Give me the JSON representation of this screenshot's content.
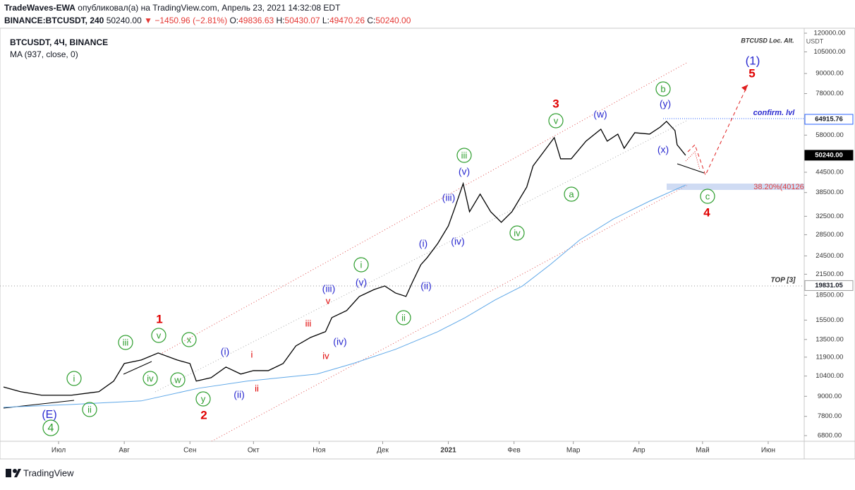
{
  "header": {
    "line1": "TradeWaves-EWA",
    "line1_rest": "опубликовал(а) на TradingView.com, Апрель 23, 2021 14:32:08 EDT",
    "symbol": "BINANCE:BTCUSDT, 240",
    "last": "50240.00",
    "arrow": "▼",
    "change": "−1450.96 (−2.81%)",
    "o_label": "O:",
    "o": "49836.63",
    "h_label": "H:",
    "h": "50430.07",
    "l_label": "L:",
    "l": "49470.26",
    "c_label": "C:",
    "c": "50240.00"
  },
  "footer": {
    "brand": "TradingView"
  },
  "chart_data": {
    "type": "line",
    "log_scale": true,
    "y_unit": "USDT",
    "xlim": [
      156,
      534
    ],
    "ylim": [
      6530,
      124300
    ],
    "xticks": [
      {
        "value": 182,
        "label": "Июл"
      },
      {
        "value": 213,
        "label": "Авг"
      },
      {
        "value": 244,
        "label": "Сен"
      },
      {
        "value": 274,
        "label": "Окт"
      },
      {
        "value": 305,
        "label": "Ноя"
      },
      {
        "value": 335,
        "label": "Дек"
      },
      {
        "value": 366,
        "label": "2021"
      },
      {
        "value": 397,
        "label": "Фев"
      },
      {
        "value": 425,
        "label": "Мар"
      },
      {
        "value": 456,
        "label": "Апр"
      },
      {
        "value": 486,
        "label": "Май"
      },
      {
        "value": 517,
        "label": "Июн"
      }
    ],
    "yticks": [
      {
        "value": 120000,
        "label": "120000.00"
      },
      {
        "value": 105000,
        "label": "105000.00"
      },
      {
        "value": 90000,
        "label": "90000.00"
      },
      {
        "value": 78000,
        "label": "78000.00"
      },
      {
        "value": 58000,
        "label": "58000.00"
      },
      {
        "value": 44500,
        "label": "44500.00"
      },
      {
        "value": 38500,
        "label": "38500.00"
      },
      {
        "value": 32500,
        "label": "32500.00"
      },
      {
        "value": 28500,
        "label": "28500.00"
      },
      {
        "value": 24500,
        "label": "24500.00"
      },
      {
        "value": 21500,
        "label": "21500.00"
      },
      {
        "value": 18500,
        "label": "18500.00"
      },
      {
        "value": 15500,
        "label": "15500.00"
      },
      {
        "value": 13500,
        "label": "13500.00"
      },
      {
        "value": 11900,
        "label": "11900.00"
      },
      {
        "value": 10400,
        "label": "10400.00"
      },
      {
        "value": 9000,
        "label": "9000.00"
      },
      {
        "value": 7800,
        "label": "7800.00"
      },
      {
        "value": 6800,
        "label": "6800.00"
      }
    ],
    "price_labels": [
      {
        "value": 64915.76,
        "label": "64915.76",
        "color": "#2962ff"
      },
      {
        "value": 50240,
        "label": "50240.00",
        "color": "#000000"
      },
      {
        "value": 19831.05,
        "label": "19831.05",
        "color": "#9e9e9e"
      }
    ],
    "series": [
      {
        "name": "BTCUSDT, 4Ч, BINANCE",
        "color": "#000000",
        "x": [
          156,
          164,
          174,
          188,
          201,
          208,
          213,
          221,
          229,
          238,
          244,
          247,
          254,
          261,
          268,
          274,
          281,
          288,
          294,
          301,
          308,
          311,
          318,
          324,
          331,
          336,
          341,
          346,
          349,
          353,
          356,
          361,
          366,
          369,
          373,
          376,
          381,
          386,
          391,
          396,
          403,
          406,
          411,
          416,
          419,
          424,
          431,
          438,
          441,
          446,
          449,
          454,
          461,
          466,
          469,
          473,
          474,
          478
        ],
        "values": [
          9620,
          9300,
          9070,
          9070,
          9300,
          10030,
          11370,
          11660,
          12260,
          11660,
          11370,
          10030,
          10280,
          11090,
          10550,
          10810,
          10810,
          11370,
          12890,
          13700,
          14270,
          15780,
          16590,
          18350,
          19280,
          19770,
          18810,
          18350,
          20290,
          23000,
          24200,
          26770,
          30340,
          34420,
          41040,
          33570,
          38070,
          33570,
          31140,
          33570,
          40030,
          46560,
          51490,
          56970,
          48970,
          48970,
          55560,
          60490,
          55560,
          58410,
          52800,
          58990,
          58410,
          61410,
          63960,
          59890,
          54150,
          50220
        ]
      },
      {
        "name": "MA (937, close, 0)",
        "color": "#5fa8e8",
        "x": [
          156,
          188,
          221,
          248,
          271,
          304,
          321,
          341,
          361,
          374,
          388,
          401,
          414,
          428,
          444,
          461,
          478
        ],
        "values": [
          8320,
          8490,
          8710,
          9530,
          10030,
          10550,
          11370,
          12580,
          14270,
          15780,
          17890,
          19770,
          23000,
          27450,
          31920,
          36210,
          40630
        ]
      }
    ],
    "annotations": [
      {
        "text": "1",
        "color": "#e00000"
      },
      {
        "text": "2",
        "color": "#e00000"
      },
      {
        "text": "3",
        "color": "#e00000"
      },
      {
        "text": "4",
        "color": "#e00000"
      },
      {
        "text": "5",
        "color": "#e00000"
      },
      {
        "text": "i",
        "color": "#e00000"
      },
      {
        "text": "ii",
        "color": "#e00000"
      },
      {
        "text": "iii",
        "color": "#e00000"
      },
      {
        "text": "iv",
        "color": "#e00000"
      },
      {
        "text": "v",
        "color": "#e00000"
      },
      {
        "text": "(E)",
        "color": "#2a2ad0"
      },
      {
        "text": "(i)",
        "color": "#2a2ad0"
      },
      {
        "text": "(ii)",
        "color": "#2a2ad0"
      },
      {
        "text": "(iii)",
        "color": "#2a2ad0"
      },
      {
        "text": "(iv)",
        "color": "#2a2ad0"
      },
      {
        "text": "(v)",
        "color": "#2a2ad0"
      },
      {
        "text": "(i)",
        "color": "#2a2ad0"
      },
      {
        "text": "(ii)",
        "color": "#2a2ad0"
      },
      {
        "text": "(iii)",
        "color": "#2a2ad0"
      },
      {
        "text": "(iv)",
        "color": "#2a2ad0"
      },
      {
        "text": "(v)",
        "color": "#2a2ad0"
      },
      {
        "text": "(w)",
        "color": "#2a2ad0"
      },
      {
        "text": "(x)",
        "color": "#2a2ad0"
      },
      {
        "text": "(y)",
        "color": "#2a2ad0"
      },
      {
        "text": "(1)",
        "color": "#2a2ad0"
      },
      {
        "text": "4",
        "color": "#2e9e2e",
        "circled": true
      },
      {
        "text": "i",
        "color": "#2e9e2e",
        "circled": true
      },
      {
        "text": "ii",
        "color": "#2e9e2e",
        "circled": true
      },
      {
        "text": "iii",
        "color": "#2e9e2e",
        "circled": true
      },
      {
        "text": "iv",
        "color": "#2e9e2e",
        "circled": true
      },
      {
        "text": "v",
        "color": "#2e9e2e",
        "circled": true
      },
      {
        "text": "w",
        "color": "#2e9e2e",
        "circled": true
      },
      {
        "text": "x",
        "color": "#2e9e2e",
        "circled": true
      },
      {
        "text": "y",
        "color": "#2e9e2e",
        "circled": true
      },
      {
        "text": "i",
        "color": "#2e9e2e",
        "circled": true
      },
      {
        "text": "ii",
        "color": "#2e9e2e",
        "circled": true
      },
      {
        "text": "iii",
        "color": "#2e9e2e",
        "circled": true
      },
      {
        "text": "iv",
        "color": "#2e9e2e",
        "circled": true
      },
      {
        "text": "v",
        "color": "#2e9e2e",
        "circled": true
      },
      {
        "text": "a",
        "color": "#2e9e2e",
        "circled": true
      },
      {
        "text": "b",
        "color": "#2e9e2e",
        "circled": true
      },
      {
        "text": "c",
        "color": "#2e9e2e",
        "circled": true
      },
      {
        "text": "BTCUSD Loc. Alt.",
        "color": "#333333"
      },
      {
        "text": "confirm. lvl",
        "color": "#2a2ad0"
      },
      {
        "text": "TOP [3]",
        "color": "#333333"
      },
      {
        "text": "38.20%(40126",
        "color": "#e04040"
      }
    ]
  }
}
